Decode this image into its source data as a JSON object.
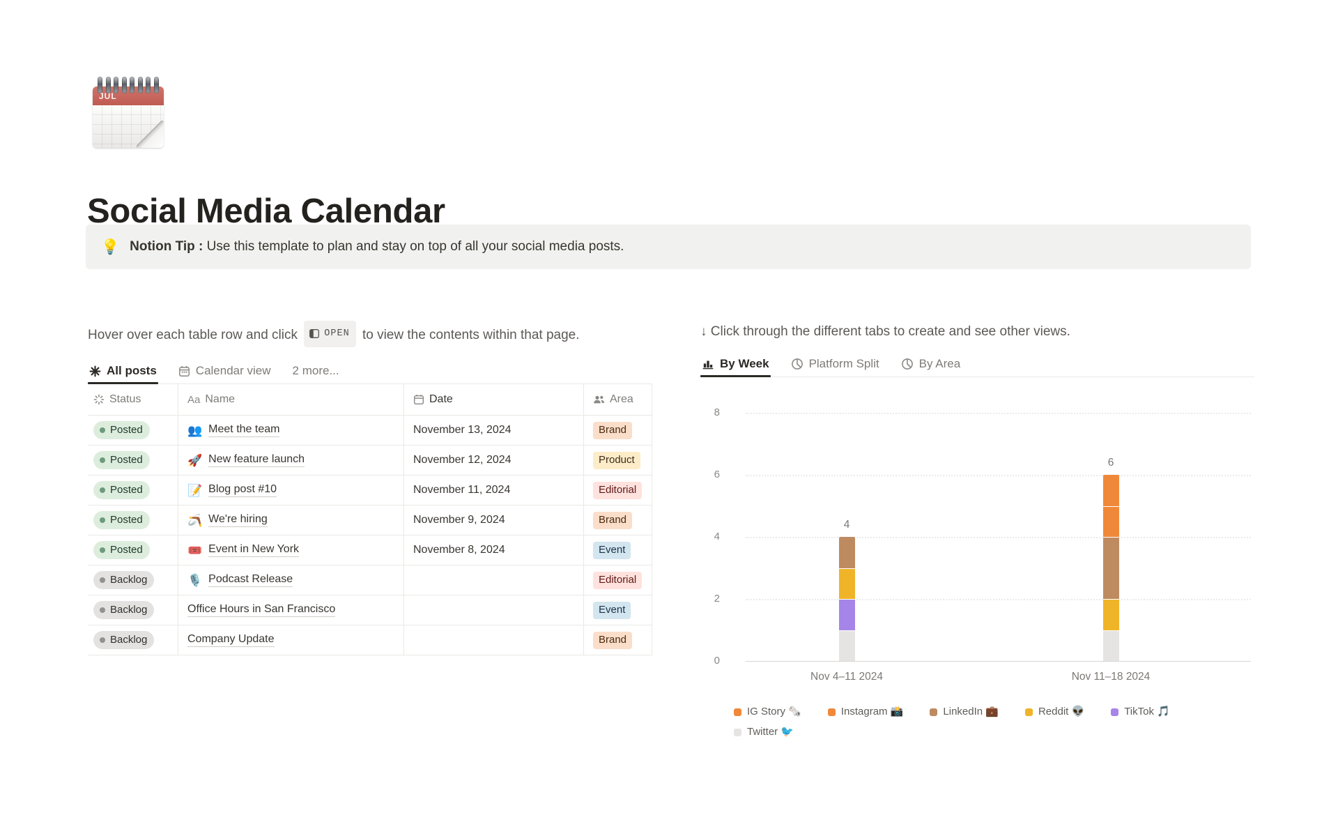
{
  "page": {
    "icon_month": "JUL",
    "title": "Social Media Calendar",
    "callout": {
      "icon": "💡",
      "label_bold": "Notion Tip :",
      "text": " Use this template to plan and stay on top of all your social media posts."
    }
  },
  "left": {
    "intro_before": "Hover over each table row and click ",
    "open_button": "OPEN",
    "intro_after": " to view the contents within that page.",
    "tabs": [
      {
        "label": "All posts",
        "icon": "asterisk-icon",
        "active": true
      },
      {
        "label": "Calendar view",
        "icon": "calendar-icon",
        "active": false
      },
      {
        "label": "2 more...",
        "icon": "",
        "active": false
      }
    ],
    "table": {
      "columns": [
        {
          "label": "Status",
          "icon": "status-spinner-icon"
        },
        {
          "label": "Name",
          "icon": "aa-icon"
        },
        {
          "label": "Date",
          "icon": "calendar-icon"
        },
        {
          "label": "Area",
          "icon": "people-icon"
        }
      ],
      "rows": [
        {
          "status": "Posted",
          "status_color": "green",
          "emoji": "👥",
          "name": "Meet the team",
          "date": "November 13, 2024",
          "area": "Brand",
          "area_color": "orange"
        },
        {
          "status": "Posted",
          "status_color": "green",
          "emoji": "🚀",
          "name": "New feature launch",
          "date": "November 12, 2024",
          "area": "Product",
          "area_color": "yellow"
        },
        {
          "status": "Posted",
          "status_color": "green",
          "emoji": "📝",
          "name": "Blog post #10",
          "date": "November 11, 2024",
          "area": "Editorial",
          "area_color": "red"
        },
        {
          "status": "Posted",
          "status_color": "green",
          "emoji": "🪃",
          "name": "We're hiring",
          "date": "November 9, 2024",
          "area": "Brand",
          "area_color": "orange"
        },
        {
          "status": "Posted",
          "status_color": "green",
          "emoji": "🎟️",
          "name": "Event in New York",
          "date": "November 8, 2024",
          "area": "Event",
          "area_color": "blue"
        },
        {
          "status": "Backlog",
          "status_color": "gray",
          "emoji": "🎙️",
          "name": "Podcast Release",
          "date": "",
          "area": "Editorial",
          "area_color": "red"
        },
        {
          "status": "Backlog",
          "status_color": "gray",
          "emoji": "",
          "name": "Office Hours in San Francisco",
          "date": "",
          "area": "Event",
          "area_color": "blue"
        },
        {
          "status": "Backlog",
          "status_color": "gray",
          "emoji": "",
          "name": "Company Update",
          "date": "",
          "area": "Brand",
          "area_color": "orange"
        }
      ]
    }
  },
  "right": {
    "intro": "↓ Click through the different tabs to create and see other views.",
    "tabs": [
      {
        "label": "By Week",
        "icon": "bar-chart-icon",
        "active": true
      },
      {
        "label": "Platform Split",
        "icon": "pie-chart-icon",
        "active": false
      },
      {
        "label": "By Area",
        "icon": "pie-chart-icon",
        "active": false
      }
    ]
  },
  "chart_data": {
    "type": "bar",
    "stacked": true,
    "title": "",
    "categories": [
      "Nov 4–11 2024",
      "Nov 11–18 2024"
    ],
    "series": [
      {
        "name": "IG Story 🗞️",
        "color": "#F0883A",
        "values": [
          0,
          1
        ]
      },
      {
        "name": "Instagram 📸",
        "color": "#F0883A",
        "values": [
          0,
          1
        ]
      },
      {
        "name": "LinkedIn 💼",
        "color": "#BE8B61",
        "values": [
          1,
          2
        ]
      },
      {
        "name": "Reddit 👽",
        "color": "#F0B429",
        "values": [
          1,
          1
        ]
      },
      {
        "name": "TikTok 🎵",
        "color": "#A585E8",
        "values": [
          1,
          0
        ]
      },
      {
        "name": "Twitter 🐦",
        "color": "#E6E4E2",
        "values": [
          1,
          1
        ]
      }
    ],
    "totals": [
      4,
      6
    ],
    "yticks": [
      0,
      2,
      4,
      6,
      8
    ],
    "ylim": [
      0,
      8
    ],
    "grid": true,
    "legend_position": "bottom"
  },
  "colors": {
    "status": {
      "green": {
        "bg": "#DDEDDD",
        "dot": "#6C9B7D",
        "text": "#1C3829"
      },
      "gray": {
        "bg": "#E3E2E0",
        "dot": "#91918E",
        "text": "#32302C"
      }
    },
    "tag": {
      "orange": {
        "bg": "#FADEC9",
        "text": "#49290E"
      },
      "yellow": {
        "bg": "#FDECC8",
        "text": "#402C1B"
      },
      "red": {
        "bg": "#FFE2DD",
        "text": "#5D1715"
      },
      "blue": {
        "bg": "#D3E5EF",
        "text": "#183347"
      }
    }
  }
}
